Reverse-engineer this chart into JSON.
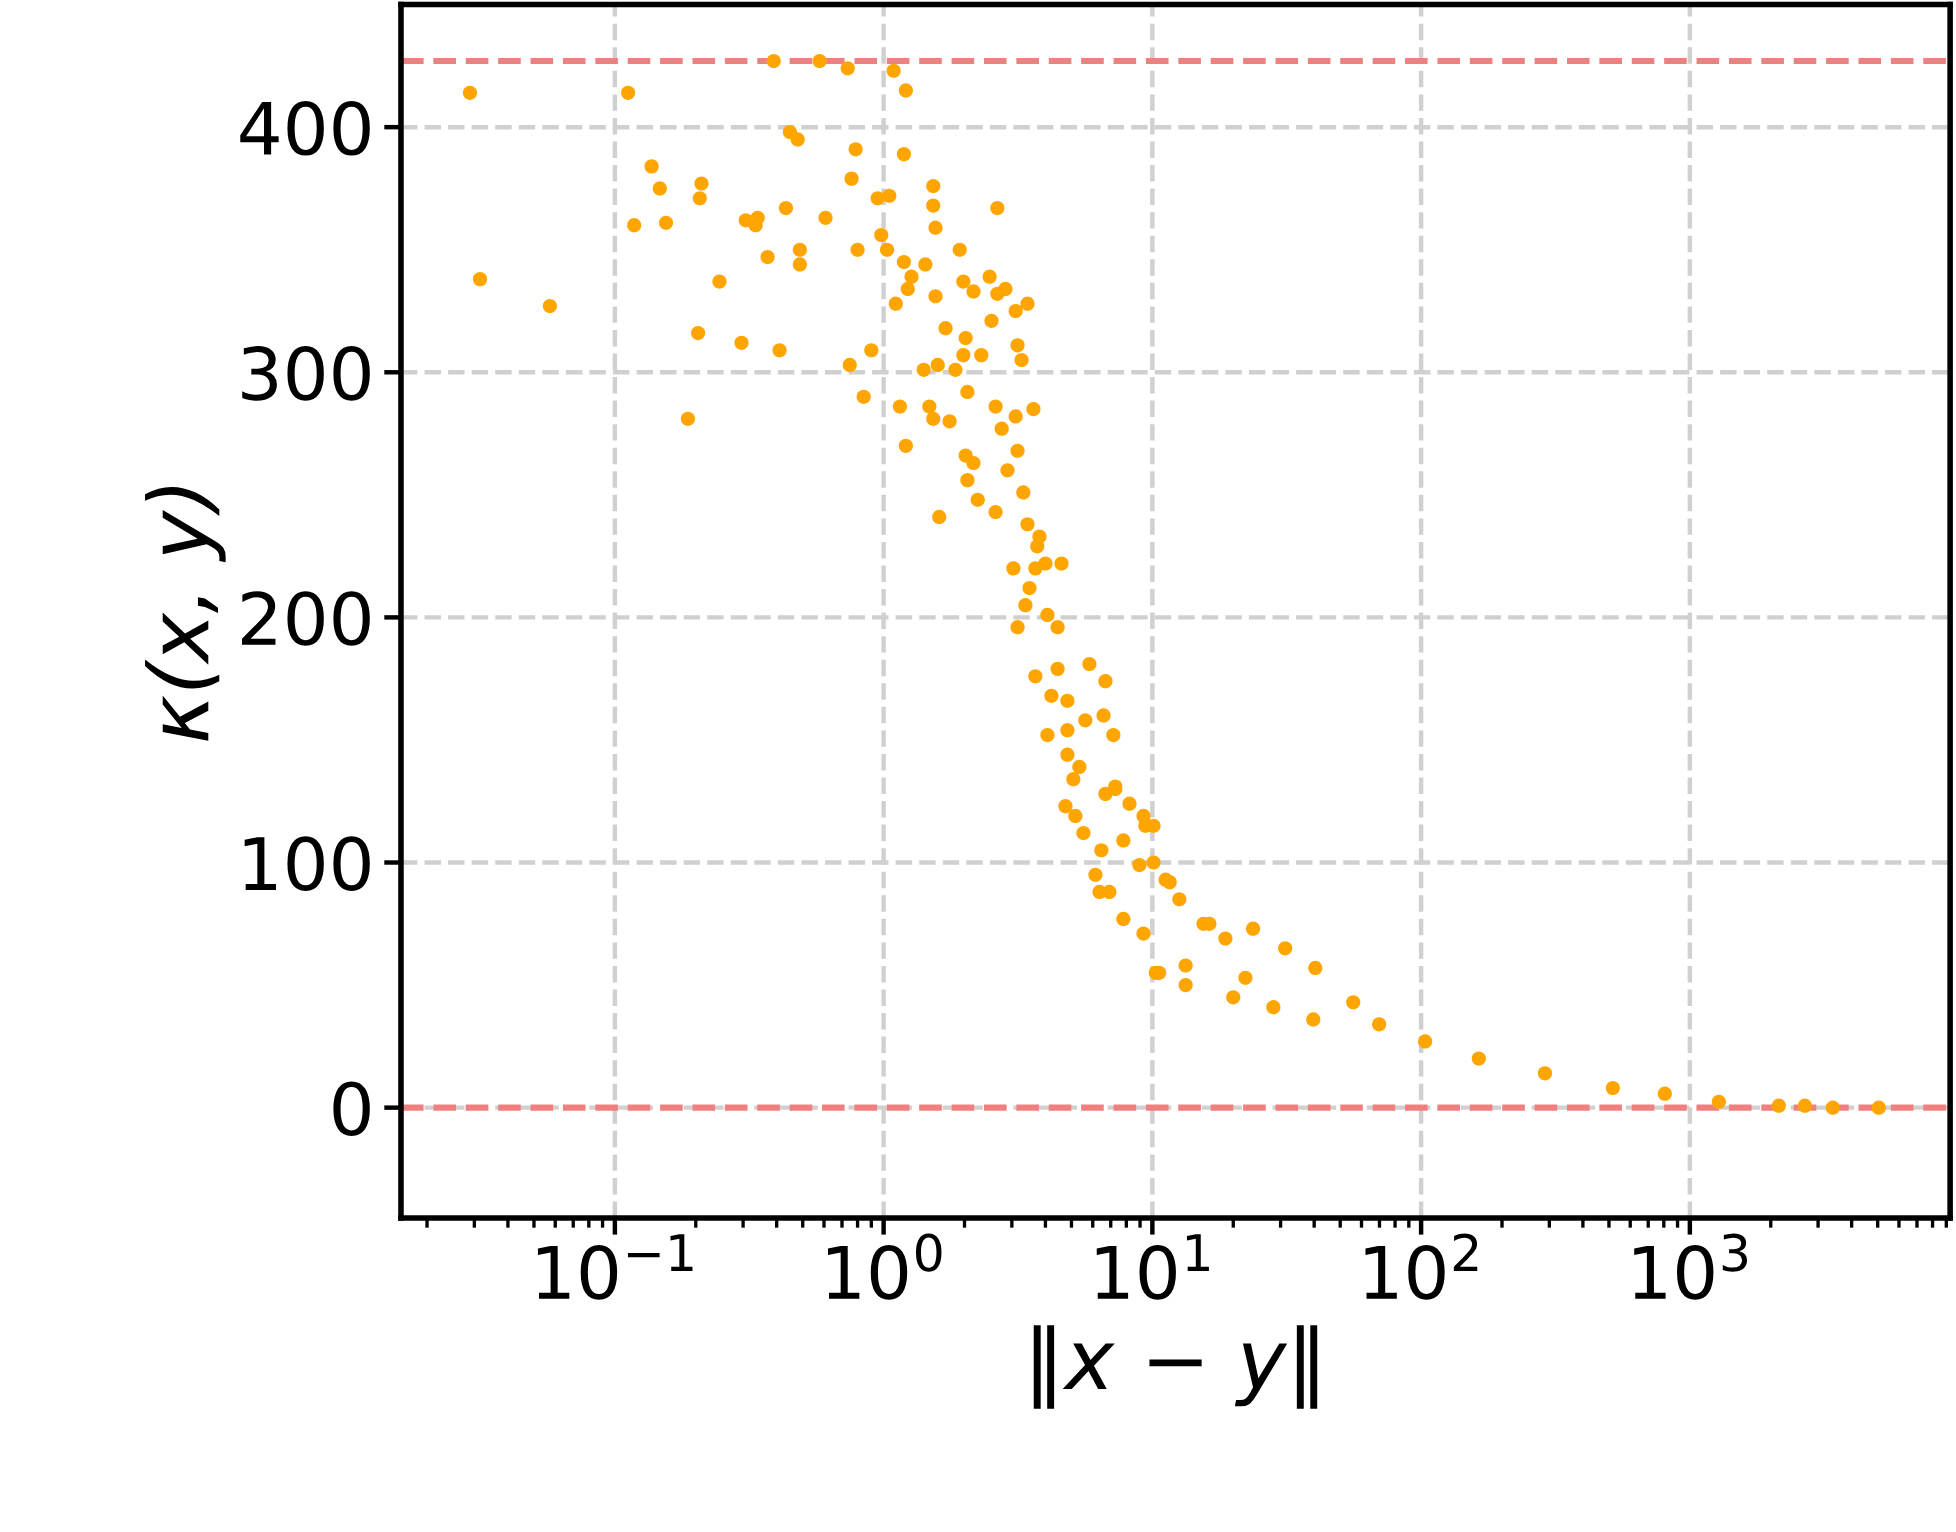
{
  "chart_data": {
    "type": "scatter",
    "xlabel": "‖x − y‖",
    "ylabel": "κ(x, y)",
    "log": "x",
    "grid": true,
    "marker": "circle",
    "xlim": [
      0.016,
      9300
    ],
    "ylim": [
      -45,
      450
    ],
    "xticks": [
      {
        "value": 0.1,
        "label": "10$^{−1}$"
      },
      {
        "value": 1,
        "label": "10$^{0}$"
      },
      {
        "value": 10,
        "label": "10$^{1}$"
      },
      {
        "value": 100,
        "label": "10$^{2}$"
      },
      {
        "value": 1000,
        "label": "10$^{3}$"
      }
    ],
    "yticks": [
      0,
      100,
      200,
      300,
      400
    ],
    "ref_lines": [
      {
        "axis": "y",
        "value": 427,
        "label": null,
        "color": "#f08080",
        "line_style": "dashed"
      },
      {
        "axis": "y",
        "value": 0,
        "label": null,
        "color": "#f08080",
        "line_style": "dashed"
      }
    ],
    "series": [
      {
        "color": "#ffa500",
        "x": [
          0.0289,
          0.0315,
          0.0573,
          0.112,
          0.137,
          0.147,
          0.118,
          0.155,
          0.21,
          0.207,
          0.187,
          0.204,
          0.245,
          0.296,
          0.307,
          0.34,
          0.334,
          0.37,
          0.39,
          0.41,
          0.433,
          0.448,
          0.479,
          0.488,
          0.488,
          0.578,
          0.608,
          0.735,
          0.787,
          0.76,
          0.8,
          0.748,
          0.9,
          0.843,
          0.95,
          1.05,
          0.98,
          1.03,
          1.09,
          1.21,
          1.19,
          1.19,
          1.27,
          1.23,
          1.11,
          1.43,
          1.53,
          1.53,
          1.56,
          1.56,
          1.15,
          1.21,
          1.48,
          1.53,
          1.41,
          1.59,
          1.85,
          1.76,
          1.61,
          1.92,
          1.98,
          2.16,
          2.48,
          2.65,
          2.65,
          2.84,
          1.7,
          2.02,
          1.98,
          2.31,
          2.52,
          3.1,
          3.43,
          3.15,
          3.26,
          2.05,
          2.61,
          2.75,
          3.1,
          3.61,
          2.02,
          2.16,
          2.05,
          3.15,
          2.89,
          2.24,
          3.31,
          2.61,
          3.43,
          3.8,
          3.73,
          3.04,
          3.67,
          4.0,
          4.59,
          3.49,
          3.37,
          3.15,
          4.07,
          4.44,
          3.67,
          4.44,
          5.83,
          6.69,
          4.21,
          4.83,
          4.07,
          4.83,
          5.63,
          6.58,
          7.16,
          4.83,
          5.35,
          5.08,
          4.75,
          5.17,
          6.69,
          7.28,
          8.22,
          9.27,
          10.1,
          5.54,
          6.46,
          7.8,
          6.14,
          6.92,
          8.95,
          11.2,
          12.6,
          7.8,
          9.27,
          10.3,
          15.5,
          18.7,
          13.3,
          22.2,
          7.28,
          9.42,
          10.1,
          11.6,
          16.3,
          23.7,
          31.2,
          40.4,
          55.9,
          10.6,
          13.3,
          20.0,
          28.2,
          39.7,
          69.8,
          103.5,
          164,
          289,
          517,
          807,
          1282,
          2143,
          2679,
          3404,
          5047,
          6.36
        ],
        "values": [
          414,
          338,
          327,
          414,
          384,
          375,
          360,
          361,
          377,
          371,
          281,
          316,
          337,
          312,
          362,
          363,
          360,
          347,
          427,
          309,
          367,
          398,
          395,
          350,
          344,
          427,
          363,
          424,
          391,
          379,
          350,
          303,
          309,
          290,
          371,
          372,
          356,
          350,
          423,
          415,
          389,
          345,
          339,
          334,
          328,
          344,
          376,
          368,
          359,
          331,
          286,
          270,
          286,
          281,
          301,
          303,
          301,
          280,
          241,
          350,
          337,
          333,
          339,
          367,
          332,
          334,
          318,
          314,
          307,
          307,
          321,
          325,
          328,
          311,
          305,
          292,
          286,
          277,
          282,
          285,
          266,
          263,
          256,
          268,
          260,
          248,
          251,
          243,
          238,
          233,
          229,
          220,
          220,
          222,
          222,
          212,
          205,
          196,
          201,
          196,
          176,
          179,
          181,
          174,
          168,
          166,
          152,
          154,
          158,
          160,
          152,
          144,
          139,
          134,
          123,
          119,
          128,
          131,
          124,
          119,
          115,
          112,
          105,
          109,
          95,
          88,
          99,
          93,
          85,
          77,
          71,
          55,
          75,
          69,
          58,
          53,
          130,
          115,
          100,
          92,
          75,
          73,
          65,
          57,
          43,
          55,
          50,
          45,
          41,
          36,
          34,
          27,
          20,
          14,
          8,
          5.7,
          2.4,
          0.8,
          0.8,
          0,
          0,
          88
        ]
      }
    ]
  }
}
